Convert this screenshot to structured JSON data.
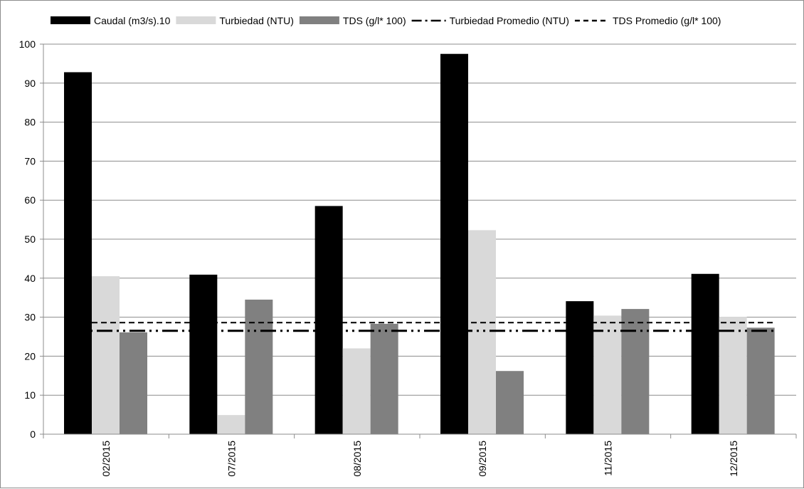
{
  "chart_data": {
    "type": "bar",
    "categories": [
      "02/2015",
      "07/2015",
      "08/2015",
      "09/2015",
      "11/2015",
      "12/2015"
    ],
    "series": [
      {
        "name": "Caudal (m3/s).10",
        "type": "bar",
        "color": "#000000",
        "values": [
          92.8,
          40.9,
          58.5,
          97.5,
          34.1,
          41.1
        ]
      },
      {
        "name": "Turbiedad (NTU)",
        "type": "bar",
        "color": "#d9d9d9",
        "values": [
          40.5,
          4.9,
          22.0,
          52.3,
          30.4,
          30.1
        ]
      },
      {
        "name": "TDS (g/l* 100)",
        "type": "bar",
        "color": "#808080",
        "values": [
          26.1,
          34.5,
          28.3,
          16.2,
          32.1,
          27.3
        ]
      },
      {
        "name": "Turbiedad Promedio (NTU)",
        "type": "line",
        "style": "dash-dot-dot",
        "color": "#000000",
        "value": 26.5
      },
      {
        "name": "TDS Promedio  (g/l* 100)",
        "type": "line",
        "style": "dashed",
        "color": "#000000",
        "value": 28.6
      }
    ],
    "ylim": [
      0,
      100
    ],
    "yticks": [
      0,
      10,
      20,
      30,
      40,
      50,
      60,
      70,
      80,
      90,
      100
    ],
    "grid": true,
    "legend_position": "top",
    "xlabel": "",
    "ylabel": "",
    "title": ""
  }
}
